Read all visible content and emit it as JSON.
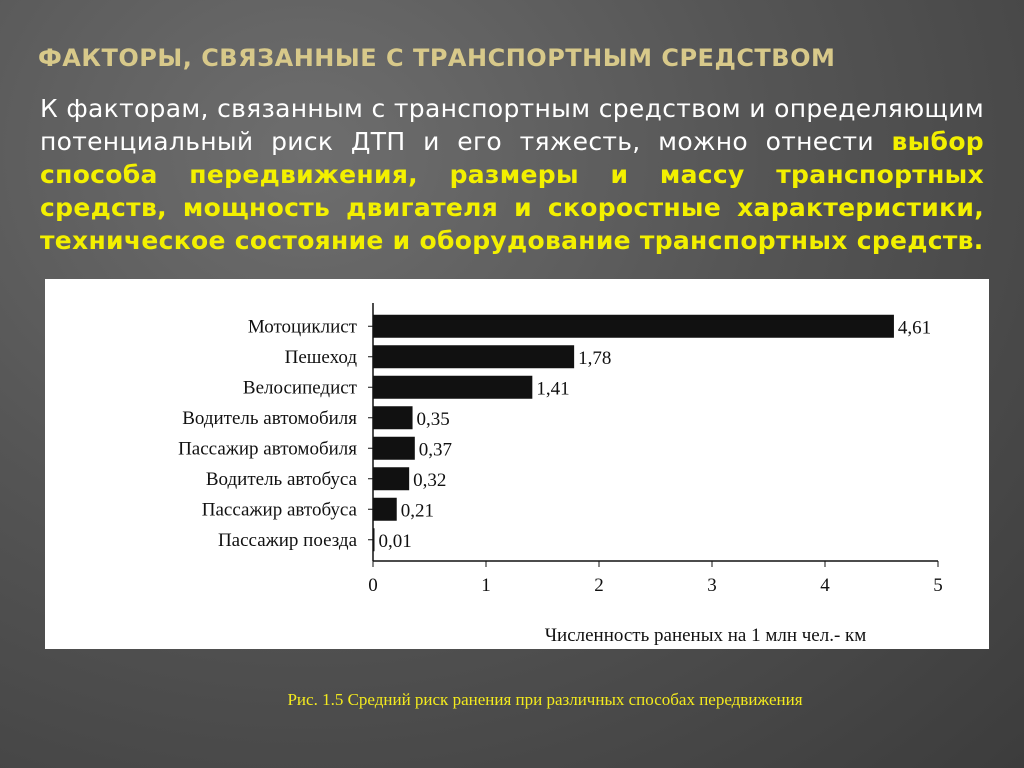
{
  "slide": {
    "title": "ФАКТОРЫ, СВЯЗАННЫЕ С ТРАНСПОРТНЫМ СРЕДСТВОМ",
    "intro": "К факторам, связанным с транспортным средством и определяющим потенциальный риск ДТП и его тяжесть, можно отнести",
    "highlight": "выбор способа передвижения, размеры и массу транспортных средств, мощность двигателя и скоростные характеристики, техническое состояние и оборудование транспортных средств.",
    "caption": "Рис. 1.5 Средний риск ранения при различных способах передвижения"
  },
  "colors": {
    "title": "#d8c98a",
    "highlight": "#f3f000",
    "caption": "#f3ea1e",
    "bar": "#111111"
  },
  "chart_data": {
    "type": "bar",
    "orientation": "horizontal",
    "categories": [
      "Мотоциклист",
      "Пешеход",
      "Велосипедист",
      "Водитель автомобиля",
      "Пассажир автомобиля",
      "Водитель автобуса",
      "Пассажир автобуса",
      "Пассажир поезда"
    ],
    "values": [
      4.61,
      1.78,
      1.41,
      0.35,
      0.37,
      0.32,
      0.21,
      0.01
    ],
    "value_labels": [
      "4,61",
      "1,78",
      "1,41",
      "0,35",
      "0,37",
      "0,32",
      "0,21",
      "0,01"
    ],
    "xlabel": "Численность раненых на 1 млн чел.- км",
    "ylabel": "",
    "xlim": [
      0,
      5
    ],
    "xticks": [
      0,
      1,
      2,
      3,
      4,
      5
    ],
    "grid": false
  }
}
